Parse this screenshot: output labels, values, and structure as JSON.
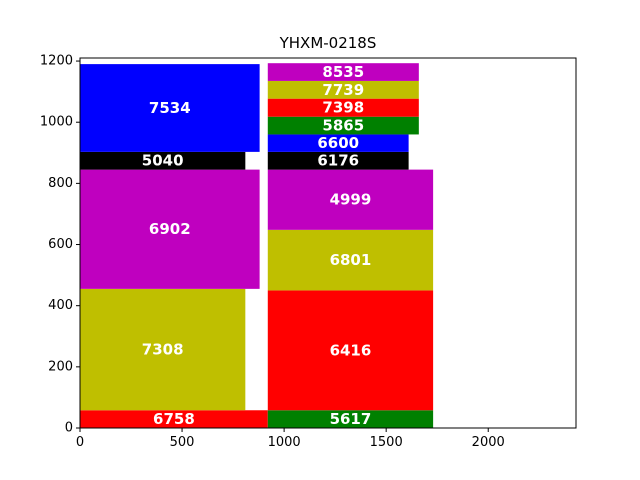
{
  "chart_data": {
    "type": "bar",
    "subtype": "packed-rectangles",
    "title": "YHXM-0218S",
    "xlabel": "",
    "ylabel": "",
    "xlim": [
      0,
      2430
    ],
    "ylim": [
      0,
      1210
    ],
    "xticks": [
      0,
      500,
      1000,
      1500,
      2000
    ],
    "yticks": [
      0,
      200,
      400,
      600,
      800,
      1000,
      1200
    ],
    "grid": false,
    "legend": "none",
    "colors": {
      "red": "#ff0000",
      "olive": "#bfbf00",
      "magenta": "#bf00bf",
      "black": "#000000",
      "blue": "#0000ff",
      "green": "#008000"
    },
    "bars": [
      {
        "label": "6758",
        "x0": 0,
        "x1": 920,
        "y0": 0,
        "y1": 58,
        "color": "#ff0000"
      },
      {
        "label": "7308",
        "x0": 0,
        "x1": 810,
        "y0": 58,
        "y1": 455,
        "color": "#bfbf00"
      },
      {
        "label": "6902",
        "x0": 0,
        "x1": 880,
        "y0": 455,
        "y1": 845,
        "color": "#bf00bf"
      },
      {
        "label": "5040",
        "x0": 0,
        "x1": 810,
        "y0": 845,
        "y1": 903,
        "color": "#000000"
      },
      {
        "label": "7534",
        "x0": 0,
        "x1": 880,
        "y0": 903,
        "y1": 1190,
        "color": "#0000ff"
      },
      {
        "label": "5617",
        "x0": 920,
        "x1": 1730,
        "y0": 0,
        "y1": 58,
        "color": "#008000"
      },
      {
        "label": "6416",
        "x0": 920,
        "x1": 1730,
        "y0": 58,
        "y1": 450,
        "color": "#ff0000"
      },
      {
        "label": "6801",
        "x0": 920,
        "x1": 1730,
        "y0": 450,
        "y1": 648,
        "color": "#bfbf00"
      },
      {
        "label": "4999",
        "x0": 920,
        "x1": 1730,
        "y0": 648,
        "y1": 845,
        "color": "#bf00bf"
      },
      {
        "label": "6176",
        "x0": 920,
        "x1": 1610,
        "y0": 845,
        "y1": 903,
        "color": "#000000"
      },
      {
        "label": "6600",
        "x0": 920,
        "x1": 1610,
        "y0": 903,
        "y1": 960,
        "color": "#0000ff"
      },
      {
        "label": "5865",
        "x0": 920,
        "x1": 1660,
        "y0": 960,
        "y1": 1018,
        "color": "#008000"
      },
      {
        "label": "7398",
        "x0": 920,
        "x1": 1660,
        "y0": 1018,
        "y1": 1077,
        "color": "#ff0000"
      },
      {
        "label": "7739",
        "x0": 920,
        "x1": 1660,
        "y0": 1077,
        "y1": 1135,
        "color": "#bfbf00"
      },
      {
        "label": "8535",
        "x0": 920,
        "x1": 1660,
        "y0": 1135,
        "y1": 1193,
        "color": "#bf00bf"
      }
    ]
  }
}
